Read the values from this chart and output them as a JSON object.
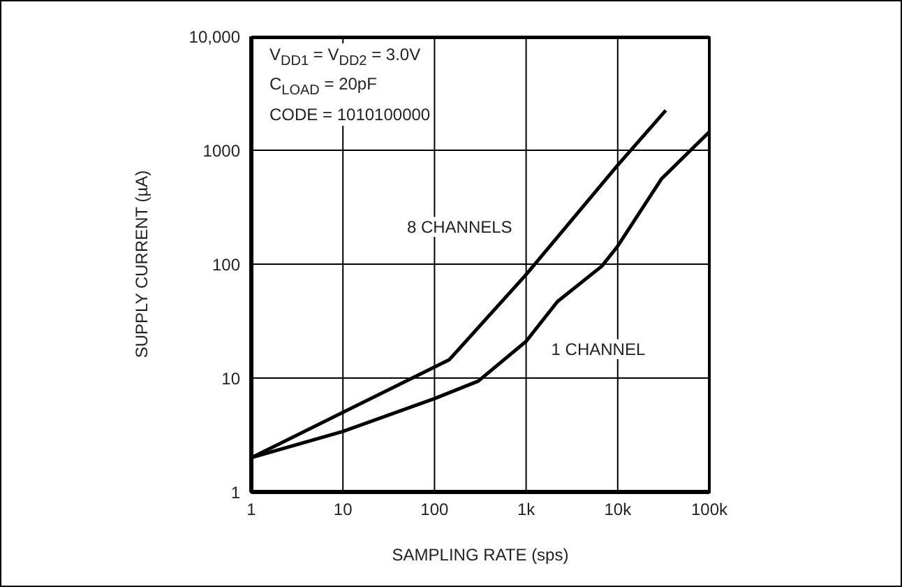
{
  "chart_data": {
    "type": "line",
    "xlabel": "SAMPLING RATE (sps)",
    "ylabel": "SUPPLY CURRENT (µA)",
    "annotations": [
      "V$_{DD1}$ = V$_{DD2}$ = 3.0V",
      "C$_{LOAD}$ = 20pF",
      "CODE = 1010100000"
    ],
    "log": "xy",
    "grid": true,
    "legend": false,
    "marker": "none",
    "line_style": "solid",
    "xlim": [
      1,
      100000
    ],
    "ylim": [
      1,
      10000
    ],
    "xticks": [
      1,
      10,
      100,
      {
        "value": 1000,
        "label": "1k"
      },
      {
        "value": 10000,
        "label": "10k"
      },
      {
        "value": 100000,
        "label": "100k"
      }
    ],
    "yticks": [
      1,
      10,
      100,
      1000,
      {
        "value": 10000,
        "label": "10,000"
      }
    ],
    "series": [
      {
        "name": "8 CHANNELS",
        "color": "#000000",
        "x": [
          1,
          145,
          1000,
          10000,
          33500
        ],
        "values": [
          2,
          14.5,
          81,
          740,
          2240
        ]
      },
      {
        "name": "1 CHANNEL",
        "color": "#000000",
        "x": [
          1,
          10,
          100,
          300,
          1000,
          2200,
          6700,
          10000,
          30000,
          100000
        ],
        "values": [
          2,
          3.4,
          6.6,
          9.4,
          21,
          47,
          96,
          144,
          560,
          1450
        ]
      }
    ]
  }
}
